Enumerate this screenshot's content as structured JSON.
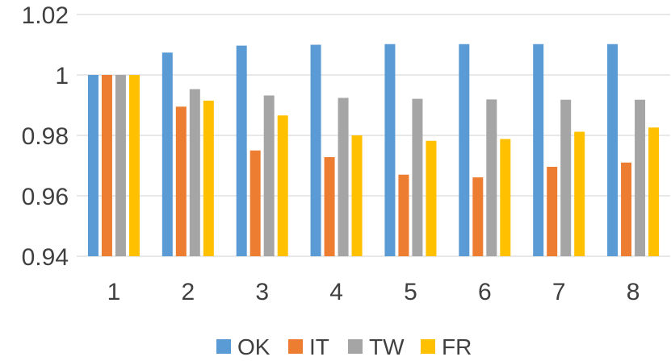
{
  "chart_data": {
    "type": "bar",
    "categories": [
      "1",
      "2",
      "3",
      "4",
      "5",
      "6",
      "7",
      "8"
    ],
    "series": [
      {
        "name": "OK",
        "color": "#5B9BD5",
        "values": [
          1.0,
          1.0074,
          1.0097,
          1.01,
          1.0102,
          1.0102,
          1.0102,
          1.0102
        ]
      },
      {
        "name": "IT",
        "color": "#ED7D31",
        "values": [
          1.0,
          0.9895,
          0.975,
          0.9728,
          0.967,
          0.9661,
          0.9696,
          0.971
        ]
      },
      {
        "name": "TW",
        "color": "#A5A5A5",
        "values": [
          1.0,
          0.9953,
          0.9932,
          0.9924,
          0.9921,
          0.9919,
          0.9918,
          0.9918
        ]
      },
      {
        "name": "FR",
        "color": "#FFC000",
        "values": [
          1.0,
          0.9915,
          0.9866,
          0.98,
          0.9782,
          0.9788,
          0.9812,
          0.9826
        ]
      }
    ],
    "ylim": [
      0.94,
      1.02
    ],
    "yticks": [
      "0.94",
      "0.96",
      "0.98",
      "1",
      "1.02"
    ],
    "grid": true,
    "legend_position": "bottom"
  }
}
